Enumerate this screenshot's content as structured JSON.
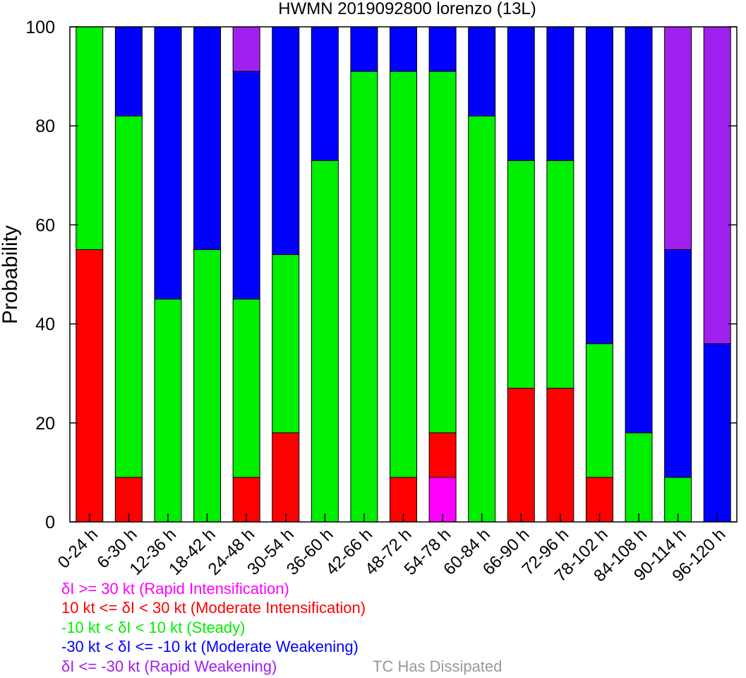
{
  "chart_data": {
    "type": "bar",
    "stacked": true,
    "title": "HWMN 2019092800 lorenzo (13L)",
    "ylabel": "Probability",
    "xlabel": "",
    "ylim": [
      0,
      100
    ],
    "yticks": [
      0,
      20,
      40,
      60,
      80,
      100
    ],
    "categories": [
      "0-24 h",
      "6-30 h",
      "12-36 h",
      "18-42 h",
      "24-48 h",
      "30-54 h",
      "36-60 h",
      "42-66 h",
      "48-72 h",
      "54-78 h",
      "60-84 h",
      "66-90 h",
      "72-96 h",
      "78-102 h",
      "84-108 h",
      "90-114 h",
      "96-120 h"
    ],
    "series": [
      {
        "key": "ri",
        "color": "#ff00ff",
        "values": [
          0,
          0,
          0,
          0,
          0,
          0,
          0,
          0,
          0,
          9,
          0,
          0,
          0,
          0,
          0,
          0,
          0
        ]
      },
      {
        "key": "mi",
        "color": "#ff0000",
        "values": [
          55,
          9,
          0,
          0,
          9,
          18,
          0,
          0,
          9,
          9,
          0,
          27,
          27,
          9,
          0,
          0,
          0
        ]
      },
      {
        "key": "steady",
        "color": "#00ee00",
        "values": [
          45,
          73,
          45,
          55,
          36,
          36,
          73,
          91,
          82,
          73,
          82,
          46,
          46,
          27,
          18,
          9,
          0
        ]
      },
      {
        "key": "mw",
        "color": "#0000ff",
        "values": [
          0,
          18,
          55,
          45,
          46,
          46,
          27,
          9,
          9,
          9,
          18,
          27,
          27,
          64,
          82,
          46,
          36
        ]
      },
      {
        "key": "rw",
        "color": "#a020f0",
        "values": [
          0,
          0,
          0,
          0,
          9,
          0,
          0,
          0,
          0,
          0,
          0,
          0,
          0,
          0,
          0,
          45,
          64
        ]
      }
    ],
    "legend": [
      {
        "text": "δI >= 30 kt (Rapid Intensification)",
        "color": "#ff00ff"
      },
      {
        "text": "10 kt <= δI < 30 kt (Moderate Intensification)",
        "color": "#ff0000"
      },
      {
        "text": "-10 kt < δI < 10 kt (Steady)",
        "color": "#00ee00"
      },
      {
        "text": "-30 kt < δI <= -10 kt (Moderate Weakening)",
        "color": "#0000ff"
      },
      {
        "text": "δI <= -30 kt (Rapid Weakening)",
        "color": "#a020f0"
      }
    ],
    "dissipated_label": "TC Has Dissipated",
    "dissipated_color": "#999999",
    "grid": false
  }
}
